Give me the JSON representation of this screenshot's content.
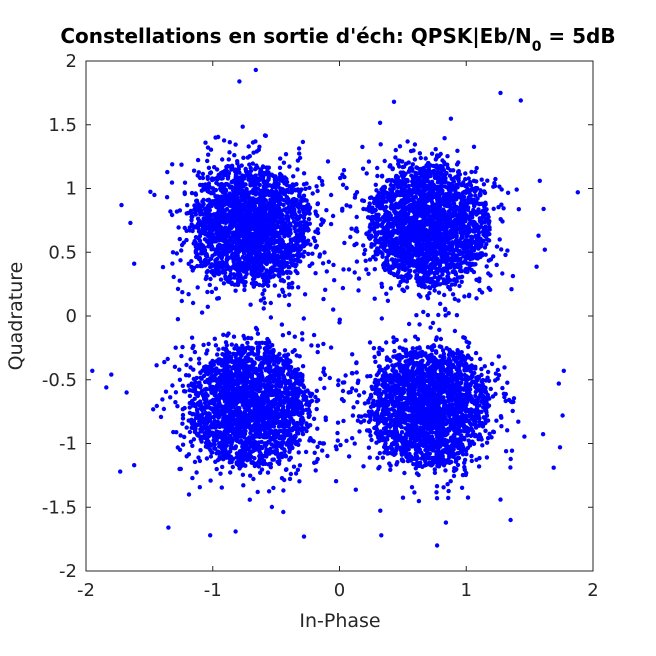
{
  "figure": {
    "background": "#ffffff"
  },
  "chart_data": {
    "type": "scatter",
    "title": {
      "main": "Constellations en sortie d'éch: QPSK|Eb/N",
      "subscript": "0",
      "suffix": " = 5dB"
    },
    "xlabel": "In-Phase",
    "ylabel": "Quadrature",
    "xlim": [
      -2,
      2
    ],
    "ylim": [
      -2,
      2
    ],
    "xticks": [
      -2,
      -1,
      0,
      1,
      2
    ],
    "xtick_labels": [
      "-2",
      "-1",
      "0",
      "1",
      "2"
    ],
    "yticks": [
      -2,
      -1.5,
      -1,
      -0.5,
      0,
      0.5,
      1,
      1.5,
      2
    ],
    "ytick_labels": [
      "-2",
      "-1.5",
      "-1",
      "-0.5",
      "0",
      "0.5",
      "1",
      "1.5",
      "2"
    ],
    "grid": false,
    "legend": "none",
    "marker_color": "#0000ff",
    "series": [
      {
        "clusters": [
          {
            "center": [
              -0.7071,
              0.7071
            ]
          },
          {
            "center": [
              0.7071,
              0.7071
            ]
          },
          {
            "center": [
              -0.7071,
              -0.7071
            ]
          },
          {
            "center": [
              0.7071,
              -0.7071
            ]
          }
        ]
      }
    ],
    "noise_std_per_component": 0.25,
    "outlier_points": [
      [
        -0.79,
        1.84
      ],
      [
        -0.66,
        1.93
      ],
      [
        1.27,
        1.75
      ],
      [
        0.43,
        1.68
      ],
      [
        1.43,
        1.69
      ],
      [
        1.88,
        0.97
      ],
      [
        1.61,
        0.84
      ],
      [
        -1.72,
        0.87
      ],
      [
        -1.65,
        0.73
      ],
      [
        -1.62,
        0.41
      ],
      [
        -1.95,
        -0.43
      ],
      [
        -1.84,
        -0.56
      ],
      [
        -1.8,
        -0.46
      ],
      [
        -1.68,
        -0.6
      ],
      [
        -1.73,
        -1.22
      ],
      [
        -1.62,
        -1.17
      ],
      [
        -1.35,
        -1.66
      ],
      [
        -1.02,
        -1.72
      ],
      [
        -0.82,
        -1.69
      ],
      [
        -0.28,
        -1.73
      ],
      [
        0.33,
        -1.72
      ],
      [
        0.77,
        -1.8
      ],
      [
        1.27,
        -1.44
      ],
      [
        1.35,
        -1.6
      ],
      [
        1.69,
        -1.19
      ],
      [
        1.74,
        -1.03
      ],
      [
        1.76,
        -0.78
      ],
      [
        1.73,
        -0.53
      ],
      [
        1.77,
        -0.43
      ],
      [
        1.57,
        0.63
      ],
      [
        1.62,
        0.52
      ],
      [
        -1.32,
        1.19
      ],
      [
        -1.46,
        0.95
      ],
      [
        1.58,
        1.06
      ],
      [
        -0.1,
        0.35
      ],
      [
        0.1,
        -0.3
      ],
      [
        -0.05,
        0.05
      ],
      [
        0.15,
        0.2
      ],
      [
        -0.2,
        -0.15
      ],
      [
        0.0,
        -0.05
      ]
    ]
  }
}
